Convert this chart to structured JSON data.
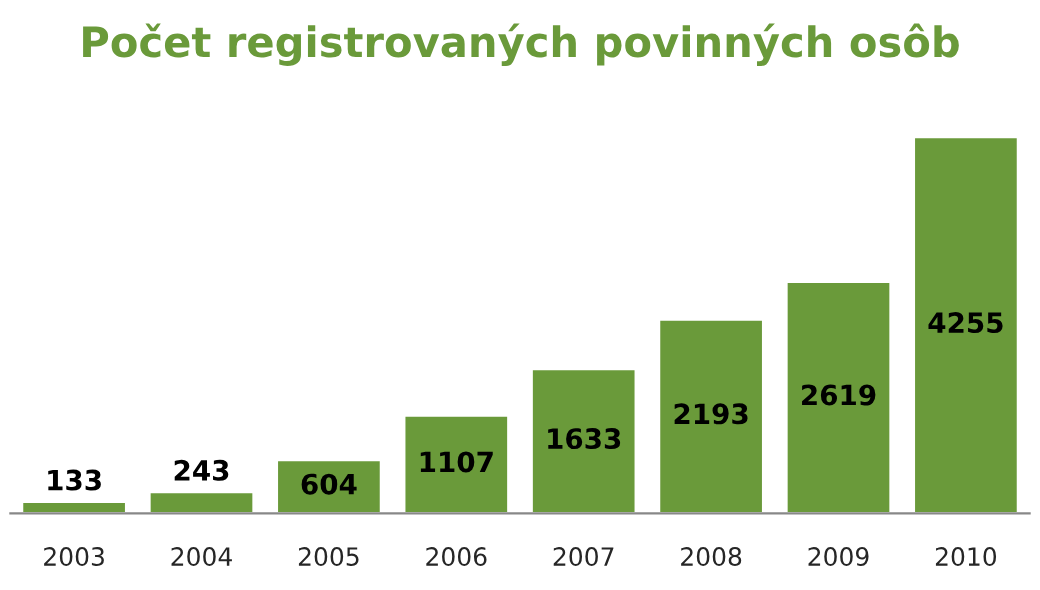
{
  "chart_data": {
    "type": "bar",
    "title": "Počet registrovaných povinných osôb",
    "categories": [
      "2003",
      "2004",
      "2005",
      "2006",
      "2007",
      "2008",
      "2009",
      "2010"
    ],
    "values": [
      133,
      243,
      604,
      1107,
      1633,
      2193,
      2619,
      4255
    ],
    "color": "#6a9a3a",
    "data_labels": true,
    "tick_labels": "x",
    "grid": false,
    "legend": false
  }
}
